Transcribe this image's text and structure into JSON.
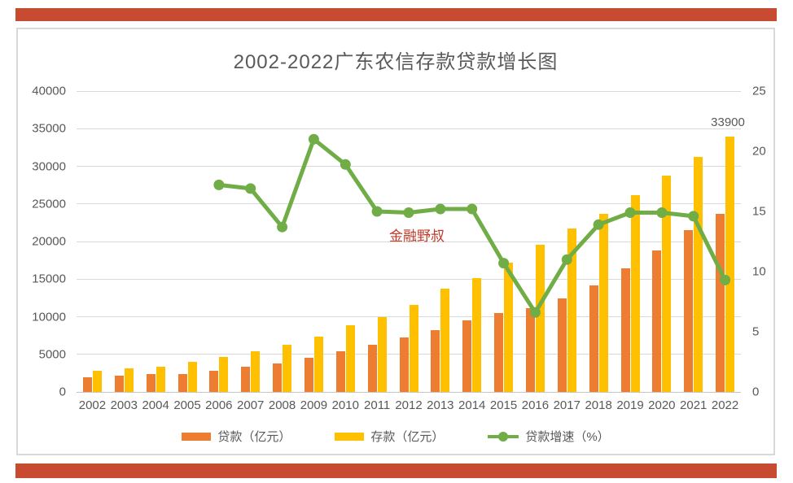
{
  "colors": {
    "accent_bar": "#C74B30",
    "loan_bar": "#ED7D31",
    "deposit_bar": "#FFC000",
    "growth_line": "#70AD47",
    "text": "#595959",
    "gridline": "#D9D9D9",
    "axis_line": "#C6C6C6",
    "watermark": "#C0392B"
  },
  "chart_data": {
    "type": "bar",
    "subtype": "combo-bar-line-dual-axis",
    "title": "2002-2022广东农信存款贷款增长图",
    "watermark": "金融野叔",
    "categories": [
      "2002",
      "2003",
      "2004",
      "2005",
      "2006",
      "2007",
      "2008",
      "2009",
      "2010",
      "2011",
      "2012",
      "2013",
      "2014",
      "2015",
      "2016",
      "2017",
      "2018",
      "2019",
      "2020",
      "2021",
      "2022"
    ],
    "series": [
      {
        "name": "贷款（亿元）",
        "type": "bar",
        "axis": "left",
        "values": [
          1900,
          2150,
          2350,
          2400,
          2800,
          3350,
          3800,
          4550,
          5450,
          6300,
          7200,
          8250,
          9500,
          10500,
          11100,
          12400,
          14200,
          16400,
          18800,
          21500,
          23700
        ]
      },
      {
        "name": "存款（亿元）",
        "type": "bar",
        "axis": "left",
        "values": [
          2800,
          3100,
          3400,
          4000,
          4700,
          5400,
          6300,
          7400,
          8900,
          10000,
          11600,
          13700,
          15100,
          17200,
          19600,
          21700,
          23700,
          26200,
          28800,
          31200,
          33900
        ]
      },
      {
        "name": "贷款增速（%）",
        "type": "line",
        "axis": "right",
        "values": [
          null,
          null,
          null,
          null,
          17.2,
          16.9,
          13.7,
          21.0,
          18.9,
          15.0,
          14.9,
          15.2,
          15.2,
          10.7,
          6.6,
          11.0,
          13.9,
          14.9,
          14.9,
          14.6,
          9.3
        ]
      }
    ],
    "annotation": {
      "text": "33900",
      "category": "2022",
      "series": "存款（亿元）"
    },
    "left_axis": {
      "min": 0,
      "max": 40000,
      "step": 5000,
      "ticks": [
        "0",
        "5000",
        "10000",
        "15000",
        "20000",
        "25000",
        "30000",
        "35000",
        "40000"
      ]
    },
    "right_axis": {
      "min": 0,
      "max": 25,
      "step": 5,
      "ticks": [
        "0",
        "5",
        "10",
        "15",
        "20",
        "25"
      ]
    },
    "grid": true,
    "legend_position": "bottom",
    "legend": [
      "贷款（亿元）",
      "存款（亿元）",
      "贷款增速（%）"
    ]
  }
}
